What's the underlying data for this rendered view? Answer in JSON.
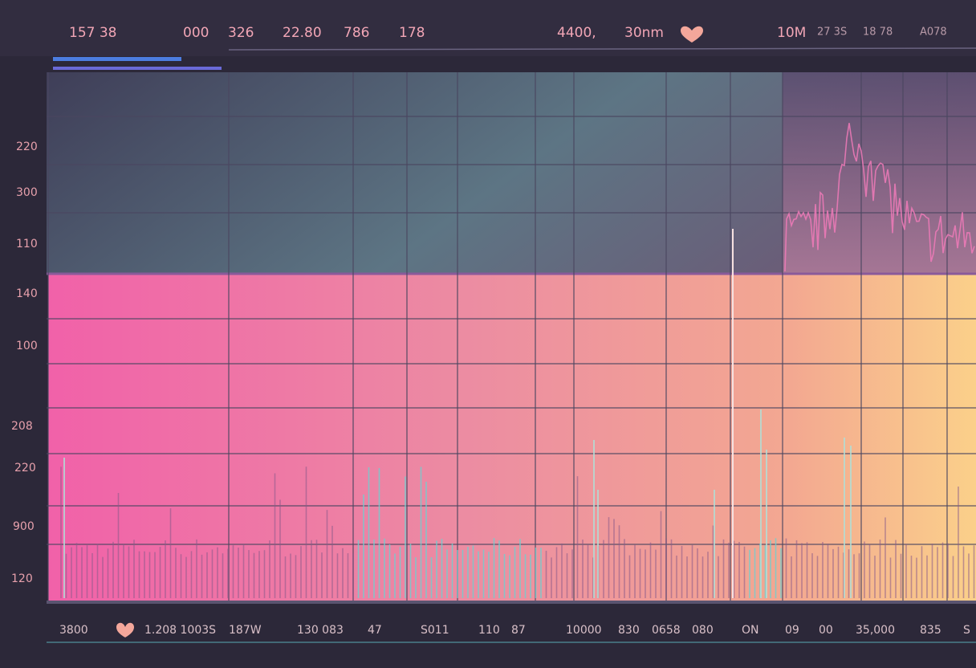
{
  "top_bar": {
    "items": [
      "157 38",
      "000",
      "326",
      "22.80",
      "786",
      "178",
      "4400,",
      "30nm",
      "10M",
      "27 3S",
      "18 78",
      "A078"
    ]
  },
  "side_labels": [
    "220",
    "300",
    "110",
    "140",
    "100",
    "208",
    "220",
    "900",
    "120"
  ],
  "bottom_bar": {
    "items": [
      "3800",
      "1.208 1003S",
      "187W",
      "130 083",
      "47",
      "S011",
      "110",
      "87",
      "10000",
      "830",
      "0658",
      "080",
      "ON",
      "09",
      "00",
      "35,000",
      "835",
      "S"
    ]
  }
}
